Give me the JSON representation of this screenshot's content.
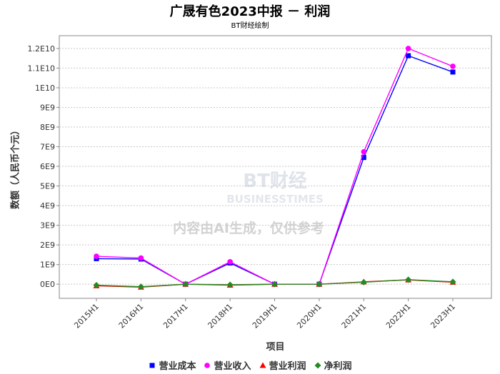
{
  "chart_data": {
    "type": "line",
    "title": "广晟有色2023中报 － 利润",
    "subtitle": "BT财经绘制",
    "xlabel": "项目",
    "ylabel": "数额（人民币个元）",
    "watermark": "BT财经 BUSINESSTIMES",
    "watermark_note": "内容由AI生成，仅供参考",
    "categories": [
      "2015H1",
      "2016H1",
      "2017H1",
      "2018H1",
      "2019H1",
      "2020H1",
      "2021H1",
      "2022H1",
      "2023H1"
    ],
    "ylim": [
      -720000000.0,
      12650000000.0
    ],
    "yticks": [
      0,
      1000000000.0,
      2000000000.0,
      3000000000.0,
      4000000000.0,
      5000000000.0,
      6000000000.0,
      7000000000.0,
      8000000000.0,
      9000000000.0,
      10000000000.0,
      11000000000.0,
      12000000000.0
    ],
    "ytick_labels": [
      "0E0",
      "1E9",
      "2E9",
      "3E9",
      "4E9",
      "5E9",
      "6E9",
      "7E9",
      "8E9",
      "9E9",
      "1E10",
      "1.1E10",
      "1.2E10"
    ],
    "grid": true,
    "legend_position": "bottom",
    "series": [
      {
        "name": "营业成本",
        "color": "#0000ff",
        "marker": "square",
        "values": [
          1300000000.0,
          1280000000.0,
          0,
          1080000000.0,
          0,
          0,
          6450000000.0,
          11630000000.0,
          10800000000.0
        ]
      },
      {
        "name": "营业收入",
        "color": "#ff00ff",
        "marker": "circle",
        "values": [
          1420000000.0,
          1330000000.0,
          0,
          1140000000.0,
          0,
          0,
          6740000000.0,
          12000000000.0,
          11090000000.0
        ]
      },
      {
        "name": "营业利润",
        "color": "#ff0000",
        "marker": "triangle",
        "values": [
          -80000000.0,
          -150000000.0,
          0,
          -50000000.0,
          0,
          0,
          120000000.0,
          220000000.0,
          100000000.0
        ]
      },
      {
        "name": "净利润",
        "color": "#228b22",
        "marker": "diamond",
        "values": [
          -50000000.0,
          -130000000.0,
          0,
          -30000000.0,
          0,
          0,
          100000000.0,
          230000000.0,
          120000000.0
        ]
      }
    ]
  }
}
